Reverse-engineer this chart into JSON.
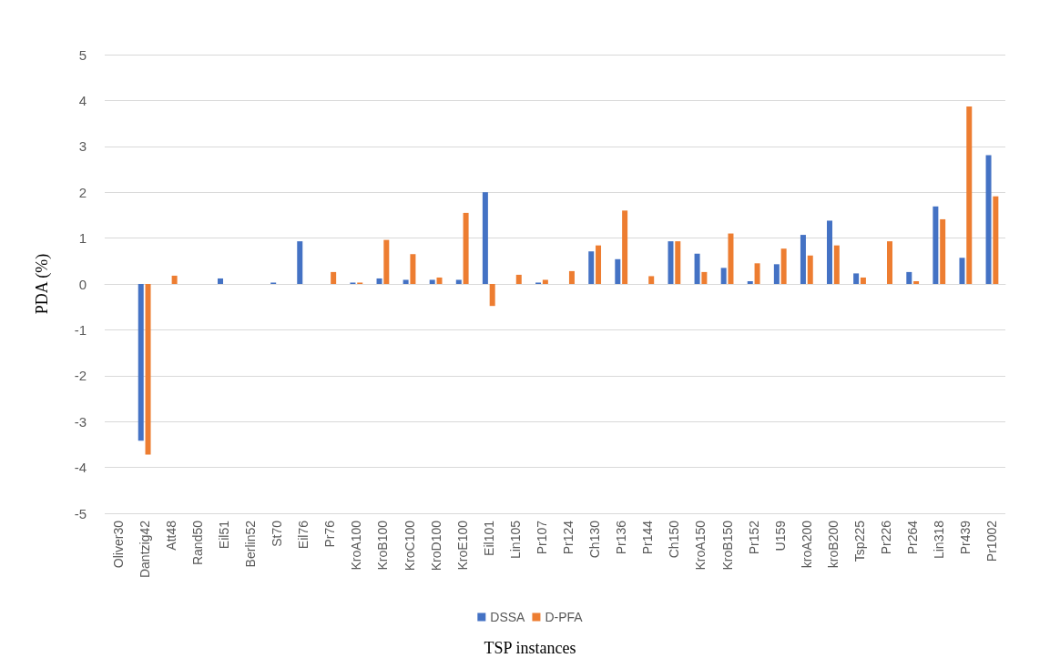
{
  "chart_data": {
    "type": "bar",
    "xlabel": "TSP instances",
    "ylabel": "PDA (%)",
    "categories": [
      "Oliver30",
      "Dantzig42",
      "Att48",
      "Rand50",
      "Eil51",
      "Berlin52",
      "St70",
      "Eil76",
      "Pr76",
      "KroA100",
      "KroB100",
      "KroC100",
      "KroD100",
      "KroE100",
      "Eil101",
      "Lin105",
      "Pr107",
      "Pr124",
      "Ch130",
      "Pr136",
      "Pr144",
      "Ch150",
      "KroA150",
      "KroB150",
      "Pr152",
      "U159",
      "kroA200",
      "kroB200",
      "Tsp225",
      "Pr226",
      "Pr264",
      "Lin318",
      "Pr439",
      "Pr1002"
    ],
    "series": [
      {
        "name": "DSSA",
        "color": "#4472c4",
        "values": [
          0,
          -3.42,
          0,
          0,
          0.12,
          0,
          0.03,
          0.93,
          0,
          0.03,
          0.12,
          0.09,
          0.09,
          0.09,
          2.0,
          0,
          0.03,
          0,
          0.71,
          0.54,
          0,
          0.93,
          0.66,
          0.35,
          0.06,
          0.43,
          1.07,
          1.38,
          0.23,
          0,
          0.26,
          1.69,
          0.57,
          2.81
        ]
      },
      {
        "name": "D-PFA",
        "color": "#ed7d31",
        "values": [
          0,
          -3.72,
          0.18,
          0,
          0,
          0,
          0,
          0,
          0.26,
          0.03,
          0.96,
          0.65,
          0.14,
          1.55,
          -0.48,
          0.2,
          0.09,
          0.28,
          0.84,
          1.6,
          0.17,
          0.93,
          0.26,
          1.1,
          0.45,
          0.77,
          0.62,
          0.84,
          0.14,
          0.93,
          0.06,
          1.41,
          3.87,
          1.91
        ]
      }
    ],
    "ylim": [
      -5,
      5
    ],
    "yticks": [
      -5,
      -4,
      -3,
      -2,
      -1,
      0,
      1,
      2,
      3,
      4,
      5
    ],
    "grid": "y",
    "legend": "bottom"
  }
}
